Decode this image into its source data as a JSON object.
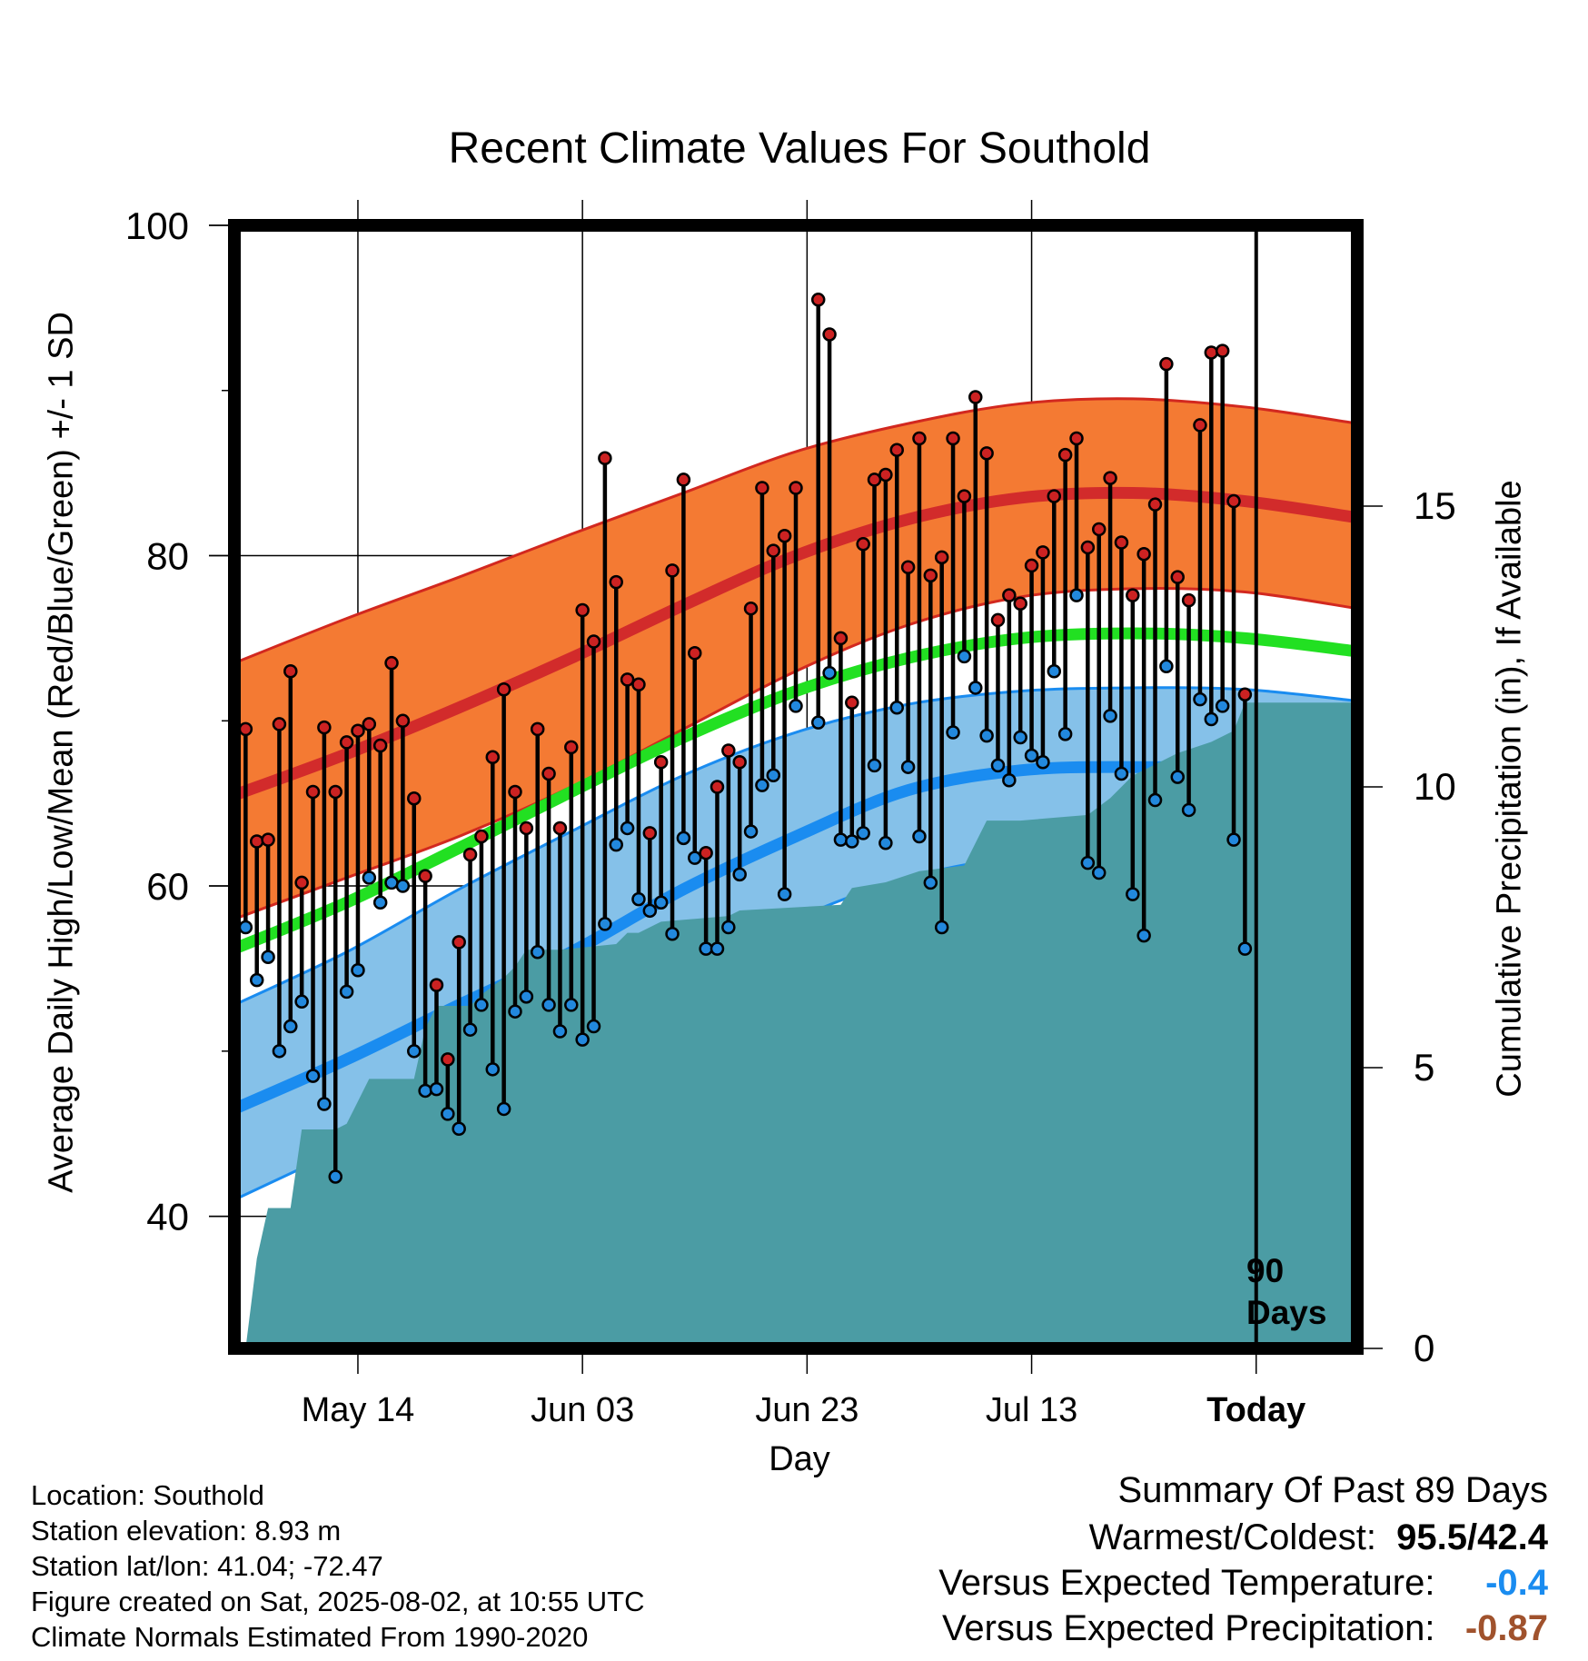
{
  "title": "Recent Climate Values For Southold",
  "xlabel": "Day",
  "ylabel": "Average Daily High/Low/Mean (Red/Blue/Green) +/- 1 SD",
  "y2label": "Cumulative Precipitation (in), If Available",
  "marker_label": "90 Days",
  "info": {
    "location": "Location: Southold",
    "elevation": "Station elevation: 8.93 m",
    "latlon": "Station lat/lon: 41.04; -72.47",
    "created": "Figure created on Sat, 2025-08-02, at 10:55 UTC",
    "normals": "Climate Normals Estimated From 1990-2020"
  },
  "summary": {
    "heading": "Summary Of Past 89 Days",
    "warm_cold_label": "Warmest/Coldest:",
    "warmest": "95.5",
    "coldest": "/42.4",
    "temp_label": "Versus Expected Temperature:",
    "temp_value": "-0.4",
    "precip_label": "Versus Expected Precipitation:",
    "precip_value": "-0.87"
  },
  "colors": {
    "high_band": "#f47a33",
    "high_mean": "#d22b2b",
    "low_band": "#85c1e9",
    "low_mean": "#1a8cf0",
    "mean": "#22e022",
    "precip": "#4b9ca4",
    "high_dot": "#cc2222",
    "low_dot": "#2288dd",
    "temp_value": "#1a8cf0",
    "precip_value": "#a0522d"
  },
  "chart_data": {
    "type": "line",
    "x_ticks": [
      {
        "label": "May 14",
        "day": 11
      },
      {
        "label": "Jun 03",
        "day": 31
      },
      {
        "label": "Jun 23",
        "day": 51
      },
      {
        "label": "Jul 13",
        "day": 71
      },
      {
        "label": "Today",
        "day": 91
      }
    ],
    "xlim": [
      0,
      100
    ],
    "ylim": [
      32,
      100
    ],
    "y_ticks": [
      40,
      60,
      80,
      100
    ],
    "y2lim": [
      0,
      20
    ],
    "y2_ticks": [
      0,
      5,
      10,
      15
    ],
    "today_day": 91,
    "grid": true,
    "normals": {
      "day": [
        0,
        10,
        20,
        30,
        40,
        50,
        60,
        70,
        80,
        90,
        100
      ],
      "high_upper": [
        73.5,
        76.2,
        78.7,
        81.3,
        83.8,
        86.3,
        88.0,
        89.2,
        89.5,
        89.0,
        88.0
      ],
      "high_mean": [
        65.5,
        68.0,
        70.8,
        73.8,
        77.0,
        80.0,
        82.2,
        83.5,
        83.8,
        83.3,
        82.3
      ],
      "high_lower": [
        58.0,
        60.5,
        63.0,
        66.0,
        69.5,
        73.0,
        75.8,
        77.5,
        78.0,
        77.8,
        76.8
      ],
      "mean_line": [
        56.2,
        59.0,
        62.3,
        65.7,
        69.0,
        71.8,
        73.8,
        75.0,
        75.3,
        75.0,
        74.2
      ],
      "low_upper": [
        52.8,
        56.0,
        59.8,
        63.3,
        66.7,
        69.3,
        71.0,
        71.8,
        72.0,
        71.9,
        71.2
      ],
      "low_mean": [
        46.5,
        49.5,
        52.8,
        56.0,
        59.8,
        63.0,
        65.8,
        67.0,
        67.2,
        67.0,
        66.0
      ],
      "low_lower": [
        41.0,
        44.2,
        47.5,
        51.0,
        54.5,
        58.0,
        60.5,
        61.8,
        62.2,
        62.0,
        61.0
      ]
    },
    "daily": [
      {
        "day": 1,
        "high": 69.5,
        "low": 57.5
      },
      {
        "day": 2,
        "high": 62.7,
        "low": 54.3
      },
      {
        "day": 3,
        "high": 62.8,
        "low": 55.7
      },
      {
        "day": 4,
        "high": 69.8,
        "low": 50.0
      },
      {
        "day": 5,
        "high": 73.0,
        "low": 51.5
      },
      {
        "day": 6,
        "high": 60.2,
        "low": 53.0
      },
      {
        "day": 7,
        "high": 65.7,
        "low": 48.5
      },
      {
        "day": 8,
        "high": 69.6,
        "low": 46.8
      },
      {
        "day": 9,
        "high": 65.7,
        "low": 42.4
      },
      {
        "day": 10,
        "high": 68.7,
        "low": 53.6
      },
      {
        "day": 11,
        "high": 69.4,
        "low": 54.9
      },
      {
        "day": 12,
        "high": 69.8,
        "low": 60.5
      },
      {
        "day": 13,
        "high": 68.5,
        "low": 59.0
      },
      {
        "day": 14,
        "high": 73.5,
        "low": 60.2
      },
      {
        "day": 15,
        "high": 70.0,
        "low": 60.0
      },
      {
        "day": 16,
        "high": 65.3,
        "low": 50.0
      },
      {
        "day": 17,
        "high": 60.6,
        "low": 47.6
      },
      {
        "day": 18,
        "high": 54.0,
        "low": 47.7
      },
      {
        "day": 19,
        "high": 49.5,
        "low": 46.2
      },
      {
        "day": 20,
        "high": 56.6,
        "low": 45.3
      },
      {
        "day": 21,
        "high": 61.9,
        "low": 51.3
      },
      {
        "day": 22,
        "high": 63.0,
        "low": 52.8
      },
      {
        "day": 23,
        "high": 67.8,
        "low": 48.9
      },
      {
        "day": 24,
        "high": 71.9,
        "low": 46.5
      },
      {
        "day": 25,
        "high": 65.7,
        "low": 52.4
      },
      {
        "day": 26,
        "high": 63.5,
        "low": 53.3
      },
      {
        "day": 27,
        "high": 69.5,
        "low": 56.0
      },
      {
        "day": 28,
        "high": 66.8,
        "low": 52.8
      },
      {
        "day": 29,
        "high": 63.5,
        "low": 51.2
      },
      {
        "day": 30,
        "high": 68.4,
        "low": 52.8
      },
      {
        "day": 31,
        "high": 76.7,
        "low": 50.7
      },
      {
        "day": 32,
        "high": 74.8,
        "low": 51.5
      },
      {
        "day": 33,
        "high": 85.9,
        "low": 57.7
      },
      {
        "day": 34,
        "high": 78.4,
        "low": 62.5
      },
      {
        "day": 35,
        "high": 72.5,
        "low": 63.5
      },
      {
        "day": 36,
        "high": 72.2,
        "low": 59.2
      },
      {
        "day": 37,
        "high": 63.2,
        "low": 58.5
      },
      {
        "day": 38,
        "high": 67.5,
        "low": 59.0
      },
      {
        "day": 39,
        "high": 79.1,
        "low": 57.1
      },
      {
        "day": 40,
        "high": 84.6,
        "low": 62.9
      },
      {
        "day": 41,
        "high": 74.1,
        "low": 61.7
      },
      {
        "day": 42,
        "high": 62.0,
        "low": 56.2
      },
      {
        "day": 43,
        "high": 66.0,
        "low": 56.2
      },
      {
        "day": 44,
        "high": 68.2,
        "low": 57.5
      },
      {
        "day": 45,
        "high": 67.5,
        "low": 60.7
      },
      {
        "day": 46,
        "high": 76.8,
        "low": 63.3
      },
      {
        "day": 47,
        "high": 84.1,
        "low": 66.1
      },
      {
        "day": 48,
        "high": 80.3,
        "low": 66.7
      },
      {
        "day": 49,
        "high": 81.2,
        "low": 59.5
      },
      {
        "day": 50,
        "high": 84.1,
        "low": 70.9
      },
      {
        "day": 52,
        "high": 95.5,
        "low": 69.9
      },
      {
        "day": 53,
        "high": 93.4,
        "low": 72.9
      },
      {
        "day": 54,
        "high": 75.0,
        "low": 62.8
      },
      {
        "day": 55,
        "high": 71.1,
        "low": 62.7
      },
      {
        "day": 56,
        "high": 80.7,
        "low": 63.2
      },
      {
        "day": 57,
        "high": 84.6,
        "low": 67.3
      },
      {
        "day": 58,
        "high": 84.9,
        "low": 62.6
      },
      {
        "day": 59,
        "high": 86.4,
        "low": 70.8
      },
      {
        "day": 60,
        "high": 79.3,
        "low": 67.2
      },
      {
        "day": 61,
        "high": 87.1,
        "low": 63.0
      },
      {
        "day": 62,
        "high": 78.8,
        "low": 60.2
      },
      {
        "day": 63,
        "high": 79.9,
        "low": 57.5
      },
      {
        "day": 64,
        "high": 87.1,
        "low": 69.3
      },
      {
        "day": 65,
        "high": 83.6,
        "low": 73.9
      },
      {
        "day": 66,
        "high": 89.6,
        "low": 72.0
      },
      {
        "day": 67,
        "high": 86.2,
        "low": 69.1
      },
      {
        "day": 68,
        "high": 76.1,
        "low": 67.3
      },
      {
        "day": 69,
        "high": 77.6,
        "low": 66.4
      },
      {
        "day": 70,
        "high": 77.1,
        "low": 69.0
      },
      {
        "day": 71,
        "high": 79.4,
        "low": 67.9
      },
      {
        "day": 72,
        "high": 80.2,
        "low": 67.5
      },
      {
        "day": 73,
        "high": 83.6,
        "low": 73.0
      },
      {
        "day": 74,
        "high": 86.1,
        "low": 69.2
      },
      {
        "day": 75,
        "high": 87.1,
        "low": 77.6
      },
      {
        "day": 76,
        "high": 80.5,
        "low": 61.4
      },
      {
        "day": 77,
        "high": 81.6,
        "low": 60.8
      },
      {
        "day": 78,
        "high": 84.7,
        "low": 70.3
      },
      {
        "day": 79,
        "high": 80.8,
        "low": 66.8
      },
      {
        "day": 80,
        "high": 77.6,
        "low": 59.5
      },
      {
        "day": 81,
        "high": 80.1,
        "low": 57.0
      },
      {
        "day": 82,
        "high": 83.1,
        "low": 65.2
      },
      {
        "day": 83,
        "high": 91.6,
        "low": 73.3
      },
      {
        "day": 84,
        "high": 78.7,
        "low": 66.6
      },
      {
        "day": 85,
        "high": 77.3,
        "low": 64.6
      },
      {
        "day": 86,
        "high": 87.9,
        "low": 71.3
      },
      {
        "day": 87,
        "high": 92.3,
        "low": 70.1
      },
      {
        "day": 88,
        "high": 92.4,
        "low": 70.9
      },
      {
        "day": 89,
        "high": 83.3,
        "low": 62.8
      },
      {
        "day": 90,
        "high": 71.6,
        "low": 56.2
      }
    ],
    "precipitation_cumulative": {
      "day": [
        1,
        2,
        3,
        4,
        5,
        6,
        8,
        9,
        10,
        11,
        12,
        16,
        17,
        18,
        21,
        22,
        24,
        25,
        26,
        28,
        29,
        34,
        35,
        36,
        38,
        44,
        45,
        54,
        55,
        58,
        61,
        65,
        67,
        70,
        76,
        78,
        80,
        82,
        84,
        87,
        89,
        90,
        91,
        100
      ],
      "value": [
        0.0,
        1.6,
        2.5,
        2.5,
        2.5,
        3.9,
        3.9,
        3.9,
        4.0,
        4.4,
        4.8,
        4.8,
        5.7,
        6.1,
        6.1,
        6.3,
        6.6,
        6.8,
        7.1,
        7.1,
        7.1,
        7.2,
        7.4,
        7.4,
        7.6,
        7.7,
        7.8,
        7.9,
        8.2,
        8.3,
        8.5,
        8.6,
        9.4,
        9.4,
        9.5,
        9.8,
        10.2,
        10.4,
        10.6,
        10.8,
        11.0,
        11.5,
        11.5,
        11.5
      ]
    }
  }
}
